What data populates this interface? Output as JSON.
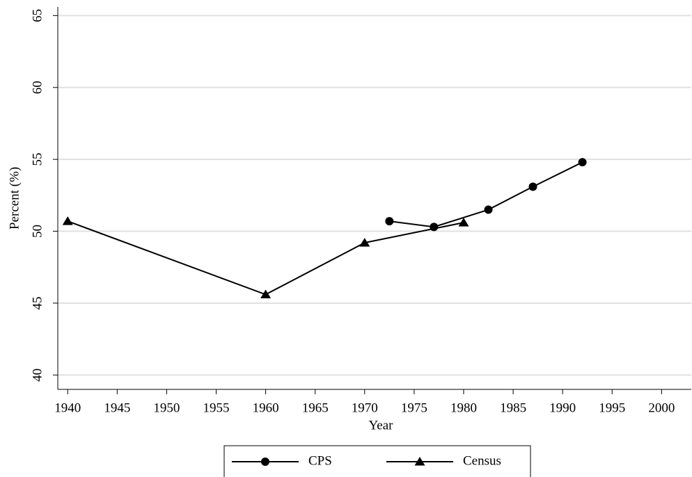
{
  "chart_data": {
    "type": "line",
    "x_label": "Year",
    "y_label": "Percent (%)",
    "xlim": [
      1939,
      2003
    ],
    "xticks": [
      1940,
      1945,
      1950,
      1955,
      1960,
      1965,
      1970,
      1975,
      1980,
      1985,
      1990,
      1995,
      2000
    ],
    "ylim": [
      39,
      65.6
    ],
    "yticks": [
      40,
      45,
      50,
      55,
      60,
      65
    ],
    "grid": true,
    "legend": "bottom",
    "series": [
      {
        "name": "CPS",
        "color": "#000000",
        "marker": "circle",
        "x": [
          1972.5,
          1977,
          1982.5,
          1987,
          1992
        ],
        "values": [
          50.7,
          50.3,
          51.5,
          53.1,
          54.8
        ]
      },
      {
        "name": "Census",
        "color": "#000000",
        "marker": "triangle",
        "x": [
          1940,
          1960,
          1970,
          1980
        ],
        "values": [
          50.7,
          45.6,
          49.2,
          50.6
        ]
      }
    ]
  }
}
